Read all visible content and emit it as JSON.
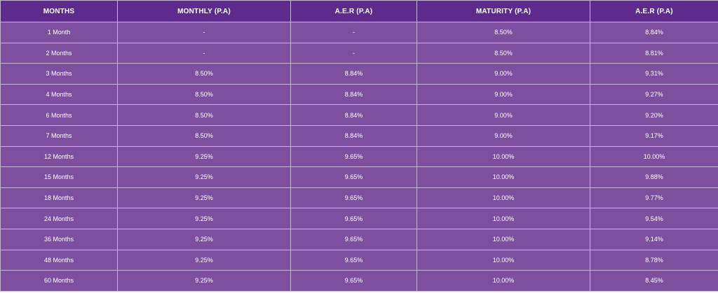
{
  "table": {
    "headers": [
      "MONTHS",
      "MONTHLY (P.A)",
      "A.E.R (P.A)",
      "MATURITY (P.A)",
      "A.E.R (P.A)"
    ],
    "rows": [
      [
        "1 Month",
        "-",
        "-",
        "8.50%",
        "8.84%"
      ],
      [
        "2 Months",
        "-",
        "-",
        "8.50%",
        "8.81%"
      ],
      [
        "3 Months",
        "8.50%",
        "8.84%",
        "9.00%",
        "9.31%"
      ],
      [
        "4 Months",
        "8.50%",
        "8.84%",
        "9.00%",
        "9.27%"
      ],
      [
        "6 Months",
        "8.50%",
        "8.84%",
        "9.00%",
        "9.20%"
      ],
      [
        "7 Months",
        "8.50%",
        "8.84%",
        "9.00%",
        "9.17%"
      ],
      [
        "12 Months",
        "9.25%",
        "9.65%",
        "10.00%",
        "10.00%"
      ],
      [
        "15 Months",
        "9.25%",
        "9.65%",
        "10.00%",
        "9.88%"
      ],
      [
        "18 Months",
        "9.25%",
        "9.65%",
        "10.00%",
        "9.77%"
      ],
      [
        "24 Months",
        "9.25%",
        "9.65%",
        "10.00%",
        "9.54%"
      ],
      [
        "36 Months",
        "9.25%",
        "9.65%",
        "10.00%",
        "9.14%"
      ],
      [
        "48 Months",
        "9.25%",
        "9.65%",
        "10.00%",
        "8.78%"
      ],
      [
        "60 Months",
        "9.25%",
        "9.65%",
        "10.00%",
        "8.45%"
      ]
    ]
  },
  "colors": {
    "header_bg": "#5e2b8c",
    "row_bg": "#7f4f9f",
    "border": "#c8b4d8",
    "text": "#ffffff"
  }
}
